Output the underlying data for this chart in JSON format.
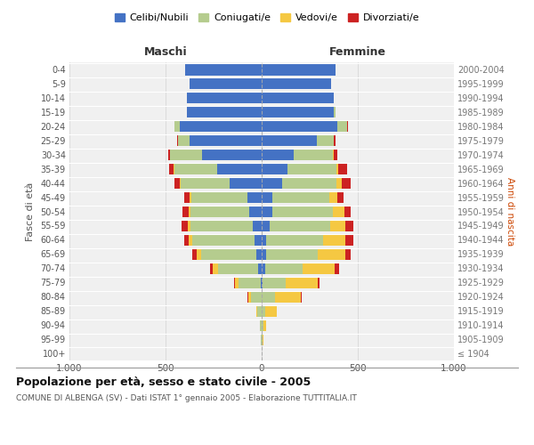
{
  "age_groups": [
    "100+",
    "95-99",
    "90-94",
    "85-89",
    "80-84",
    "75-79",
    "70-74",
    "65-69",
    "60-64",
    "55-59",
    "50-54",
    "45-49",
    "40-44",
    "35-39",
    "30-34",
    "25-29",
    "20-24",
    "15-19",
    "10-14",
    "5-9",
    "0-4"
  ],
  "birth_years": [
    "≤ 1904",
    "1905-1909",
    "1910-1914",
    "1915-1919",
    "1920-1924",
    "1925-1929",
    "1930-1934",
    "1935-1939",
    "1940-1944",
    "1945-1949",
    "1950-1954",
    "1955-1959",
    "1960-1964",
    "1965-1969",
    "1970-1974",
    "1975-1979",
    "1980-1984",
    "1985-1989",
    "1990-1994",
    "1995-1999",
    "2000-2004"
  ],
  "males": {
    "celibi": [
      0,
      0,
      0,
      0,
      0,
      5,
      20,
      30,
      35,
      45,
      65,
      75,
      165,
      230,
      310,
      375,
      425,
      390,
      390,
      375,
      400
    ],
    "coniugati": [
      0,
      5,
      10,
      25,
      55,
      115,
      205,
      285,
      325,
      325,
      305,
      290,
      255,
      225,
      165,
      60,
      30,
      0,
      0,
      0,
      0
    ],
    "vedovi": [
      0,
      0,
      0,
      5,
      15,
      20,
      30,
      25,
      20,
      15,
      10,
      10,
      5,
      5,
      0,
      0,
      0,
      0,
      0,
      0,
      0
    ],
    "divorziati": [
      0,
      0,
      0,
      0,
      5,
      5,
      15,
      20,
      25,
      30,
      30,
      30,
      30,
      20,
      10,
      5,
      0,
      0,
      0,
      0,
      0
    ]
  },
  "females": {
    "nubili": [
      0,
      0,
      0,
      0,
      0,
      5,
      20,
      25,
      25,
      40,
      55,
      55,
      105,
      135,
      165,
      285,
      395,
      375,
      375,
      360,
      385
    ],
    "coniugate": [
      0,
      5,
      10,
      20,
      70,
      120,
      195,
      265,
      295,
      315,
      315,
      295,
      285,
      255,
      205,
      90,
      50,
      10,
      0,
      0,
      0
    ],
    "vedove": [
      0,
      5,
      15,
      60,
      135,
      165,
      165,
      145,
      115,
      80,
      60,
      45,
      25,
      10,
      5,
      0,
      0,
      0,
      0,
      0,
      0
    ],
    "divorziate": [
      0,
      0,
      0,
      0,
      5,
      10,
      25,
      30,
      40,
      40,
      35,
      30,
      50,
      45,
      20,
      10,
      5,
      0,
      0,
      0,
      0
    ]
  },
  "colors": {
    "celibi_nubili": "#4472c4",
    "coniugati": "#b5cc8e",
    "vedovi": "#f5c842",
    "divorziati": "#cc2222"
  },
  "title": "Popolazione per età, sesso e stato civile - 2005",
  "subtitle": "COMUNE DI ALBENGA (SV) - Dati ISTAT 1° gennaio 2005 - Elaborazione TUTTITALIA.IT",
  "xlabel_left": "Maschi",
  "xlabel_right": "Femmine",
  "ylabel_left": "Fasce di età",
  "ylabel_right": "Anni di nascita",
  "xlim": 1000,
  "legend_labels": [
    "Celibi/Nubili",
    "Coniugati/e",
    "Vedovi/e",
    "Divorziati/e"
  ],
  "bg_color": "#ffffff",
  "plot_bg": "#f0f0f0",
  "grid_color": "#cccccc"
}
